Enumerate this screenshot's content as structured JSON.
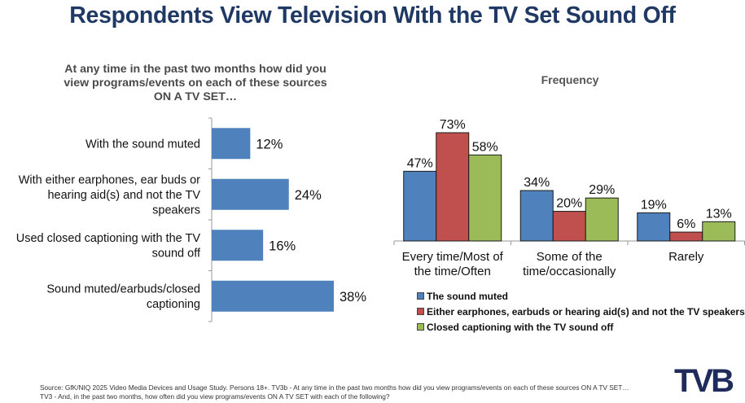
{
  "title": "Respondents View Television With the TV Set Sound Off",
  "logo_text": "TVB",
  "source_lines": [
    "Source: GfK/NIQ 2025 Video Media Devices and Usage Study. Persons 18+. TV3b - At any time in the past two months how did you view programs/events on each of these sources ON A TV SET…",
    "TV3 - And, in the past two months, how often did you view programs/events ON A TV SET with each of the following?"
  ],
  "colors": {
    "title": "#1f3864",
    "blue": "#4f81bd",
    "red": "#c0504d",
    "green": "#9bbb59"
  },
  "chart_data": [
    {
      "type": "bar",
      "orientation": "horizontal",
      "title": "At any time in the past two months how did you view programs/events on each of these sources ON A TV SET…",
      "title_lines": [
        "At any time in the past two months how did you",
        "view programs/events on each of these sources",
        "ON A TV SET…"
      ],
      "categories": [
        [
          "With the sound muted"
        ],
        [
          "With either earphones, ear buds or",
          "hearing aid(s) and not the TV",
          "speakers"
        ],
        [
          "Used closed captioning with the TV",
          "sound off"
        ],
        [
          "Sound muted/earbuds/closed",
          "captioning"
        ]
      ],
      "values": [
        12,
        24,
        16,
        38
      ],
      "data_labels": [
        "12%",
        "24%",
        "16%",
        "38%"
      ],
      "xlim": [
        0,
        40
      ],
      "grid": false
    },
    {
      "type": "bar",
      "orientation": "vertical",
      "title": "Frequency",
      "categories": [
        [
          "Every time/Most of",
          "the time/Often"
        ],
        [
          "Some of the",
          "time/occasionally"
        ],
        [
          "Rarely"
        ]
      ],
      "series": [
        {
          "name": "The sound muted",
          "color": "#4f81bd",
          "values": [
            47,
            34,
            19
          ],
          "data_labels": [
            "47%",
            "34%",
            "19%"
          ]
        },
        {
          "name": "Either earphones, earbuds or hearing aid(s) and not the TV speakers",
          "color": "#c0504d",
          "values": [
            73,
            20,
            6
          ],
          "data_labels": [
            "73%",
            "20%",
            "6%"
          ]
        },
        {
          "name": "Closed captioning with the TV sound off",
          "color": "#9bbb59",
          "values": [
            58,
            29,
            13
          ],
          "data_labels": [
            "58%",
            "29%",
            "13%"
          ]
        }
      ],
      "ylim": [
        0,
        80
      ],
      "legend": "bottom",
      "grid": false
    }
  ]
}
